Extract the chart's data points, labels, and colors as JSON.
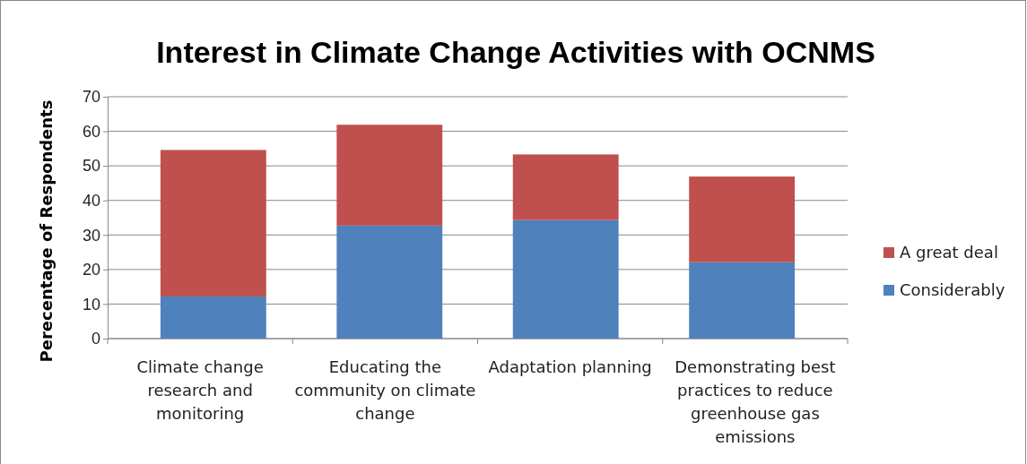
{
  "chart_data": {
    "type": "bar",
    "title": "Interest in Climate Change Activities with OCNMS",
    "ylabel": "Perecentage of Respondents",
    "categories": [
      "Climate change research and monitoring",
      "Educating the community on climate change",
      "Adaptation planning",
      "Demonstrating best practices to reduce greenhouse gas emissions"
    ],
    "series": [
      {
        "name": "Considerably",
        "color": "#4f81bd",
        "values": [
          12.2,
          32.7,
          34.3,
          22.1
        ]
      },
      {
        "name": "A great deal",
        "color": "#c0504d",
        "values": [
          42.4,
          29.2,
          19.0,
          24.8
        ]
      }
    ],
    "stacked": true,
    "ylim": [
      0,
      70
    ],
    "yticks": [
      0,
      10,
      20,
      30,
      40,
      50,
      60,
      70
    ],
    "grid": "y",
    "legend": "right"
  }
}
